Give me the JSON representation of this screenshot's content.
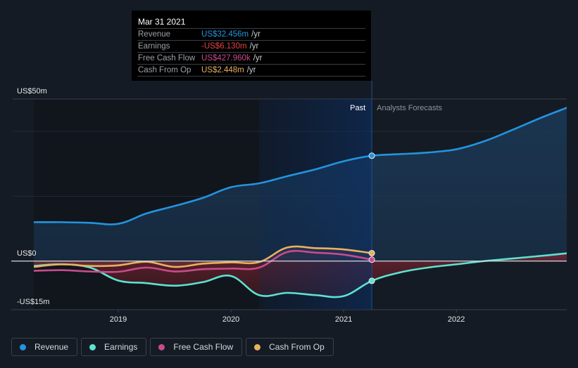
{
  "tooltip": {
    "date": "Mar 31 2021",
    "rows": [
      {
        "label": "Revenue",
        "value": "US$32.456m",
        "unit": "/yr",
        "color": "#2394df"
      },
      {
        "label": "Earnings",
        "value": "-US$6.130m",
        "unit": "/yr",
        "color": "#e64141"
      },
      {
        "label": "Free Cash Flow",
        "value": "US$427.960k",
        "unit": "/yr",
        "color": "#c84b8c"
      },
      {
        "label": "Cash From Op",
        "value": "US$2.448m",
        "unit": "/yr",
        "color": "#e9b060"
      }
    ]
  },
  "legend": [
    {
      "label": "Revenue",
      "color": "#2394df"
    },
    {
      "label": "Earnings",
      "color": "#5de3d0"
    },
    {
      "label": "Free Cash Flow",
      "color": "#c84b8c"
    },
    {
      "label": "Cash From Op",
      "color": "#e9b060"
    }
  ],
  "chart_data": {
    "type": "line",
    "title": "",
    "xlabel": "",
    "ylabel": "",
    "y_tick_labels": [
      {
        "value": 50,
        "label": "US$50m"
      },
      {
        "value": 0,
        "label": "US$0"
      },
      {
        "value": -15,
        "label": "-US$15m"
      }
    ],
    "x_tick_labels": [
      {
        "value": 2019,
        "label": "2019"
      },
      {
        "value": 2020,
        "label": "2020"
      },
      {
        "value": 2021,
        "label": "2021"
      },
      {
        "value": 2022,
        "label": "2022"
      }
    ],
    "xlim": [
      2018.25,
      2022.98
    ],
    "ylim": [
      -15,
      50
    ],
    "gridlines": [
      50,
      40,
      20,
      0
    ],
    "past_label": "Past",
    "forecast_label": "Analysts Forecasts",
    "past_end": 2021.25,
    "highlight_start": 2020.25,
    "units": "US$ millions",
    "series": [
      {
        "name": "Revenue",
        "color": "#2394df",
        "x": [
          2018.25,
          2018.5,
          2018.75,
          2019.0,
          2019.25,
          2019.5,
          2019.75,
          2020.0,
          2020.25,
          2020.5,
          2020.75,
          2021.0,
          2021.25,
          2021.5,
          2021.75,
          2022.0,
          2022.25,
          2022.5,
          2022.75,
          2022.98
        ],
        "values": [
          12.0,
          12.0,
          11.8,
          11.5,
          14.7,
          17.0,
          19.5,
          22.8,
          24.0,
          26.2,
          28.3,
          30.8,
          32.5,
          33.0,
          33.5,
          34.5,
          37.0,
          40.5,
          44.2,
          47.3
        ]
      },
      {
        "name": "Earnings",
        "color": "#5de3d0",
        "x": [
          2018.25,
          2018.5,
          2018.75,
          2019.0,
          2019.25,
          2019.5,
          2019.75,
          2020.0,
          2020.25,
          2020.5,
          2020.75,
          2021.0,
          2021.25,
          2021.5,
          2021.75,
          2022.0,
          2022.25,
          2022.5,
          2022.75,
          2022.98
        ],
        "values": [
          -1.5,
          -1.0,
          -2.0,
          -6.0,
          -6.8,
          -7.6,
          -6.5,
          -4.6,
          -10.5,
          -9.8,
          -10.5,
          -10.8,
          -6.1,
          -3.5,
          -2.0,
          -1.0,
          0.0,
          0.8,
          1.6,
          2.4
        ]
      },
      {
        "name": "Free Cash Flow",
        "color": "#c84b8c",
        "x": [
          2018.25,
          2018.5,
          2018.75,
          2019.0,
          2019.25,
          2019.5,
          2019.75,
          2020.0,
          2020.25,
          2020.5,
          2020.75,
          2021.0,
          2021.25
        ],
        "values": [
          -3.0,
          -2.8,
          -3.2,
          -3.3,
          -2.0,
          -3.2,
          -2.5,
          -2.3,
          -2.0,
          2.8,
          2.6,
          2.0,
          0.43
        ]
      },
      {
        "name": "Cash From Op",
        "color": "#e9b060",
        "x": [
          2018.25,
          2018.5,
          2018.75,
          2019.0,
          2019.25,
          2019.5,
          2019.75,
          2020.0,
          2020.25,
          2020.5,
          2020.75,
          2021.0,
          2021.25
        ],
        "values": [
          -1.8,
          -1.0,
          -1.5,
          -1.3,
          -0.2,
          -1.8,
          -0.8,
          -0.4,
          -0.3,
          4.2,
          4.0,
          3.6,
          2.45
        ]
      }
    ]
  }
}
